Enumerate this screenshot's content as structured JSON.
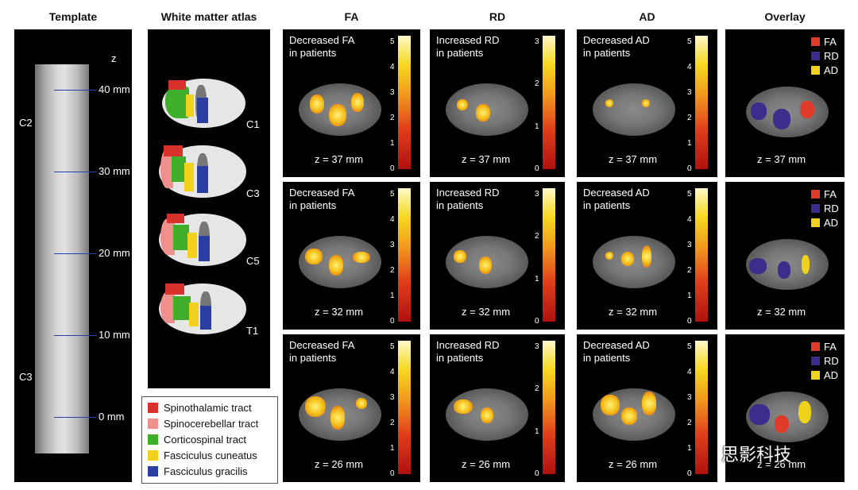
{
  "headers": {
    "template": "Template",
    "atlas": "White matter atlas",
    "fa": "FA",
    "rd": "RD",
    "ad": "AD",
    "overlay": "Overlay"
  },
  "template": {
    "axis_label": "z",
    "mm_labels": [
      "40 mm",
      "30 mm",
      "20 mm",
      "10 mm",
      "0 mm"
    ],
    "levels": [
      "C2",
      "C3"
    ]
  },
  "atlas": {
    "slice_labels": [
      "C1",
      "C3",
      "C5",
      "T1"
    ],
    "legend": [
      {
        "label": "Spinothalamic tract",
        "color": "#d8322a"
      },
      {
        "label": "Spinocerebellar tract",
        "color": "#f0908c"
      },
      {
        "label": "Corticospinal tract",
        "color": "#3fae2a"
      },
      {
        "label": "Fasciculus cuneatus",
        "color": "#f2d21c"
      },
      {
        "label": "Fasciculus gracilis",
        "color": "#2a3ea4"
      }
    ]
  },
  "columns": {
    "fa": {
      "title_line1": "Decreased FA",
      "title_line2": "in patients",
      "ticks": [
        "5",
        "4",
        "3",
        "2",
        "1",
        "0"
      ]
    },
    "rd": {
      "title_line1": "Increased RD",
      "title_line2": "in patients",
      "ticks": [
        "3",
        "2",
        "1",
        "0"
      ]
    },
    "ad": {
      "title_line1": "Decreased AD",
      "title_line2": "in patients",
      "ticks": [
        "5",
        "4",
        "3",
        "2",
        "1",
        "0"
      ]
    }
  },
  "rows": [
    {
      "z": "z = 37 mm"
    },
    {
      "z": "z = 32 mm"
    },
    {
      "z": "z = 26 mm"
    }
  ],
  "overlay_legend": [
    "FA",
    "RD",
    "AD"
  ],
  "overlay_colors": {
    "FA": "#e03a2a",
    "RD": "#3a2d8c",
    "AD": "#f0d21a"
  },
  "watermark": "思影科技"
}
